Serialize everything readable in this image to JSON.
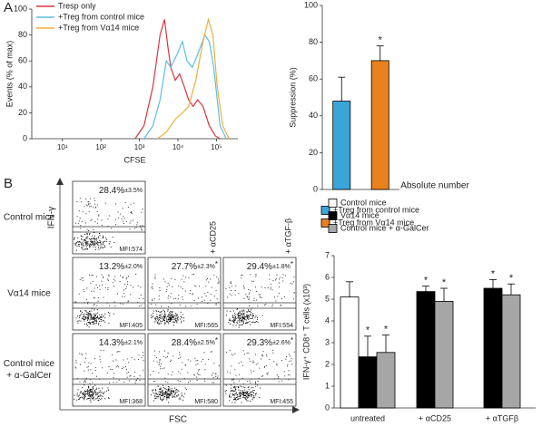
{
  "chart_data": [
    {
      "type": "line",
      "panel_label": "A",
      "x_label": "CFSE",
      "y_label": "Events (% of max)",
      "xscale": "log",
      "xlim": [
        1.6,
        360000
      ],
      "xticks": [
        {
          "value": 10,
          "label": "10¹"
        },
        {
          "value": 100,
          "label": "10²"
        },
        {
          "value": 1000,
          "label": "10³"
        },
        {
          "value": 10000,
          "label": "10⁴"
        },
        {
          "value": 100000,
          "label": "10⁵"
        }
      ],
      "ylim": [
        0,
        100
      ],
      "yticks": [
        0,
        20,
        40,
        60,
        80,
        100
      ],
      "legend": "upper left",
      "series": [
        {
          "name": "Tresp only",
          "color": "#d9363e",
          "x": [
            770,
            1310,
            2230,
            3430,
            4480,
            5550,
            6520,
            8510,
            11100,
            14600,
            19000,
            24800,
            32500,
            44800,
            65200,
            94800,
            124000
          ],
          "values": [
            0,
            10,
            40,
            80,
            92,
            70,
            55,
            45,
            50,
            40,
            30,
            25,
            30,
            25,
            10,
            2,
            0
          ]
        },
        {
          "name": "+Treg from control mice",
          "color": "#5bbfe6",
          "x": [
            1310,
            2230,
            3430,
            4990,
            6520,
            9480,
            13100,
            17100,
            23600,
            32500,
            49900,
            65200,
            85100,
            124000,
            180000
          ],
          "values": [
            0,
            10,
            30,
            60,
            55,
            65,
            75,
            60,
            55,
            65,
            80,
            75,
            55,
            10,
            0
          ]
        },
        {
          "name": "+Treg from Vα14 mice",
          "color": "#f2ad3a",
          "x": [
            2920,
            4990,
            8510,
            13100,
            19000,
            29200,
            44800,
            61800,
            80700,
            105000,
            146000,
            212000
          ],
          "values": [
            0,
            5,
            15,
            20,
            25,
            45,
            75,
            92,
            80,
            40,
            10,
            0
          ]
        }
      ]
    },
    {
      "type": "bar",
      "y_label": "Suppression (%)",
      "ylim": [
        0,
        100
      ],
      "yticks": [
        0,
        20,
        40,
        60,
        80,
        100
      ],
      "legend": "below",
      "series": [
        {
          "name": "+Treg from control mice",
          "color": "#3aa5d8",
          "values": [
            48
          ],
          "errors": [
            13
          ],
          "annotations": [
            null
          ]
        },
        {
          "name": "+Treg from Vα14 mice",
          "color": "#e8821e",
          "values": [
            70
          ],
          "errors": [
            8
          ],
          "annotations": [
            "*"
          ]
        }
      ]
    },
    {
      "type": "bar",
      "title": "Absolute number",
      "y_label": "IFN-γ⁺ CD8⁺ T cells (x10³)",
      "ylim": [
        0,
        7
      ],
      "yticks": [
        0,
        1,
        2,
        3,
        4,
        5,
        6,
        7
      ],
      "legend": "above",
      "categories": [
        "untreated",
        "+ αCD25",
        "+ αTGFβ"
      ],
      "series": [
        {
          "name": "Control mice",
          "color": "#ffffff",
          "values": [
            5.1,
            null,
            null
          ],
          "errors": [
            0.7,
            null,
            null
          ],
          "annotations": [
            null,
            null,
            null
          ]
        },
        {
          "name": "Vα14 mice",
          "color": "#000000",
          "values": [
            2.35,
            5.35,
            5.5
          ],
          "errors": [
            0.95,
            0.25,
            0.4
          ],
          "annotations": [
            "*",
            "*",
            "*"
          ]
        },
        {
          "name": "Control mice + α-GalCer",
          "color": "#a6a6a6",
          "values": [
            2.55,
            4.9,
            5.2
          ],
          "errors": [
            0.8,
            0.6,
            0.5
          ],
          "annotations": [
            "*",
            "*",
            "*"
          ]
        }
      ]
    }
  ],
  "flow_panel": {
    "panel_label": "B",
    "y_axis": "IFN-γ",
    "x_axis": "FSC",
    "columns": [
      "+ αCD25",
      "+ αTGF-β"
    ],
    "rows": [
      {
        "label": [
          "Control mice"
        ],
        "cells": [
          {
            "percent": "28.4%",
            "sd": "±3.5%",
            "star": null,
            "mfi": "MFI:574"
          }
        ]
      },
      {
        "label": [
          "Vα14 mice"
        ],
        "cells": [
          {
            "percent": "13.2%",
            "sd": "±2.0%",
            "star": null,
            "mfi": "MFI:405"
          },
          {
            "percent": "27.7%",
            "sd": "±2.3%",
            "star": "*",
            "mfi": "MFI:565"
          },
          {
            "percent": "29.4%",
            "sd": "±1.8%",
            "star": "*",
            "mfi": "MFI:554"
          }
        ]
      },
      {
        "label": [
          "Control mice",
          "+ α-GalCer"
        ],
        "cells": [
          {
            "percent": "14.3%",
            "sd": "±2.1%",
            "star": null,
            "mfi": "MFI:368"
          },
          {
            "percent": "28.4%",
            "sd": "±2.5%",
            "star": "*",
            "mfi": "MFI:580"
          },
          {
            "percent": "29.3%",
            "sd": "±2.6%",
            "star": "*",
            "mfi": "MFI:455"
          }
        ]
      }
    ]
  }
}
